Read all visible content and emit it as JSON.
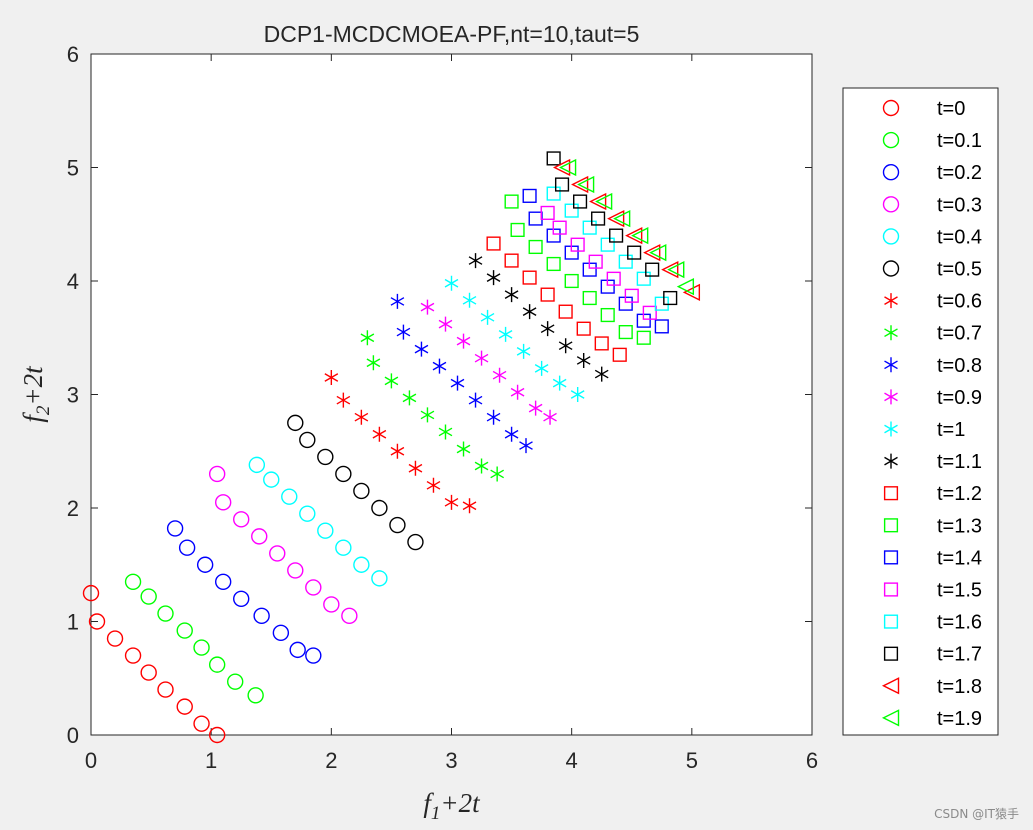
{
  "chart_data": {
    "type": "scatter",
    "title": "DCP1-MCDCMOEA-PF,nt=10,taut=5",
    "xlabel": {
      "base": "f",
      "sub": "1",
      "rest": "+2t"
    },
    "ylabel": {
      "base": "f",
      "sub": "2",
      "rest": "+2t"
    },
    "xlim": [
      0,
      6
    ],
    "ylim": [
      0,
      6
    ],
    "xticks": [
      "0",
      "1",
      "2",
      "3",
      "4",
      "5",
      "6"
    ],
    "yticks": [
      "0",
      "1",
      "2",
      "3",
      "4",
      "5",
      "6"
    ],
    "grid": false,
    "legend_position": "outside-right",
    "series": [
      {
        "name": "t=0",
        "color": "#ff0000",
        "marker": "circle",
        "x": [
          0.0,
          0.05,
          0.2,
          0.35,
          0.48,
          0.62,
          0.78,
          0.92,
          1.05
        ],
        "y": [
          1.25,
          1.0,
          0.85,
          0.7,
          0.55,
          0.4,
          0.25,
          0.1,
          0.0
        ]
      },
      {
        "name": "t=0.1",
        "color": "#00ff00",
        "marker": "circle",
        "x": [
          0.35,
          0.48,
          0.62,
          0.78,
          0.92,
          1.05,
          1.2,
          1.37
        ],
        "y": [
          1.35,
          1.22,
          1.07,
          0.92,
          0.77,
          0.62,
          0.47,
          0.35
        ]
      },
      {
        "name": "t=0.2",
        "color": "#0000ff",
        "marker": "circle",
        "x": [
          0.7,
          0.8,
          0.95,
          1.1,
          1.25,
          1.42,
          1.58,
          1.72,
          1.85
        ],
        "y": [
          1.82,
          1.65,
          1.5,
          1.35,
          1.2,
          1.05,
          0.9,
          0.75,
          0.7
        ]
      },
      {
        "name": "t=0.3",
        "color": "#ff00ff",
        "marker": "circle",
        "x": [
          1.05,
          1.1,
          1.25,
          1.4,
          1.55,
          1.7,
          1.85,
          2.0,
          2.15
        ],
        "y": [
          2.3,
          2.05,
          1.9,
          1.75,
          1.6,
          1.45,
          1.3,
          1.15,
          1.05
        ]
      },
      {
        "name": "t=0.4",
        "color": "#00ffff",
        "marker": "circle",
        "x": [
          1.38,
          1.5,
          1.65,
          1.8,
          1.95,
          2.1,
          2.25,
          2.4
        ],
        "y": [
          2.38,
          2.25,
          2.1,
          1.95,
          1.8,
          1.65,
          1.5,
          1.38
        ]
      },
      {
        "name": "t=0.5",
        "color": "#000000",
        "marker": "circle",
        "x": [
          1.7,
          1.8,
          1.95,
          2.1,
          2.25,
          2.4,
          2.55,
          2.7
        ],
        "y": [
          2.75,
          2.6,
          2.45,
          2.3,
          2.15,
          2.0,
          1.85,
          1.7
        ]
      },
      {
        "name": "t=0.6",
        "color": "#ff0000",
        "marker": "asterisk",
        "x": [
          2.0,
          2.1,
          2.25,
          2.4,
          2.55,
          2.7,
          2.85,
          3.0,
          3.15
        ],
        "y": [
          3.15,
          2.95,
          2.8,
          2.65,
          2.5,
          2.35,
          2.2,
          2.05,
          2.02
        ]
      },
      {
        "name": "t=0.7",
        "color": "#00ff00",
        "marker": "asterisk",
        "x": [
          2.3,
          2.35,
          2.5,
          2.65,
          2.8,
          2.95,
          3.1,
          3.25,
          3.38
        ],
        "y": [
          3.5,
          3.28,
          3.12,
          2.97,
          2.82,
          2.67,
          2.52,
          2.37,
          2.3
        ]
      },
      {
        "name": "t=0.8",
        "color": "#0000ff",
        "marker": "asterisk",
        "x": [
          2.55,
          2.6,
          2.75,
          2.9,
          3.05,
          3.2,
          3.35,
          3.5,
          3.62
        ],
        "y": [
          3.82,
          3.55,
          3.4,
          3.25,
          3.1,
          2.95,
          2.8,
          2.65,
          2.55
        ]
      },
      {
        "name": "t=0.9",
        "color": "#ff00ff",
        "marker": "asterisk",
        "x": [
          2.8,
          2.95,
          3.1,
          3.25,
          3.4,
          3.55,
          3.7,
          3.82
        ],
        "y": [
          3.77,
          3.62,
          3.47,
          3.32,
          3.17,
          3.02,
          2.88,
          2.8
        ]
      },
      {
        "name": "t=1",
        "color": "#00ffff",
        "marker": "asterisk",
        "x": [
          3.0,
          3.15,
          3.3,
          3.45,
          3.6,
          3.75,
          3.9,
          4.05
        ],
        "y": [
          3.98,
          3.83,
          3.68,
          3.53,
          3.38,
          3.23,
          3.1,
          3.0
        ]
      },
      {
        "name": "t=1.1",
        "color": "#000000",
        "marker": "asterisk",
        "x": [
          3.2,
          3.35,
          3.5,
          3.65,
          3.8,
          3.95,
          4.1,
          4.25
        ],
        "y": [
          4.18,
          4.03,
          3.88,
          3.73,
          3.58,
          3.43,
          3.3,
          3.18
        ]
      },
      {
        "name": "t=1.2",
        "color": "#ff0000",
        "marker": "square",
        "x": [
          3.35,
          3.5,
          3.65,
          3.8,
          3.95,
          4.1,
          4.25,
          4.4
        ],
        "y": [
          4.33,
          4.18,
          4.03,
          3.88,
          3.73,
          3.58,
          3.45,
          3.35
        ]
      },
      {
        "name": "t=1.3",
        "color": "#00ff00",
        "marker": "square",
        "x": [
          3.5,
          3.55,
          3.7,
          3.85,
          4.0,
          4.15,
          4.3,
          4.45,
          4.6
        ],
        "y": [
          4.7,
          4.45,
          4.3,
          4.15,
          4.0,
          3.85,
          3.7,
          3.55,
          3.5
        ]
      },
      {
        "name": "t=1.4",
        "color": "#0000ff",
        "marker": "square",
        "x": [
          3.65,
          3.7,
          3.85,
          4.0,
          4.15,
          4.3,
          4.45,
          4.6,
          4.75
        ],
        "y": [
          4.75,
          4.55,
          4.4,
          4.25,
          4.1,
          3.95,
          3.8,
          3.65,
          3.6
        ]
      },
      {
        "name": "t=1.5",
        "color": "#ff00ff",
        "marker": "square",
        "x": [
          3.8,
          3.9,
          4.05,
          4.2,
          4.35,
          4.5,
          4.65
        ],
        "y": [
          4.6,
          4.47,
          4.32,
          4.17,
          4.02,
          3.87,
          3.72
        ]
      },
      {
        "name": "t=1.6",
        "color": "#00ffff",
        "marker": "square",
        "x": [
          3.85,
          4.0,
          4.15,
          4.3,
          4.45,
          4.6,
          4.75
        ],
        "y": [
          4.77,
          4.62,
          4.47,
          4.32,
          4.17,
          4.02,
          3.8
        ]
      },
      {
        "name": "t=1.7",
        "color": "#000000",
        "marker": "square",
        "x": [
          3.85,
          3.92,
          4.07,
          4.22,
          4.37,
          4.52,
          4.67,
          4.82
        ],
        "y": [
          5.08,
          4.85,
          4.7,
          4.55,
          4.4,
          4.25,
          4.1,
          3.85
        ]
      },
      {
        "name": "t=1.8",
        "color": "#ff0000",
        "marker": "triangle-left",
        "x": [
          3.92,
          4.07,
          4.22,
          4.37,
          4.52,
          4.67,
          4.82,
          5.0
        ],
        "y": [
          5.0,
          4.85,
          4.7,
          4.55,
          4.4,
          4.25,
          4.1,
          3.9
        ]
      },
      {
        "name": "t=1.9",
        "color": "#00ff00",
        "marker": "triangle-left",
        "x": [
          3.97,
          4.12,
          4.27,
          4.42,
          4.57,
          4.72,
          4.87,
          4.95
        ],
        "y": [
          5.0,
          4.85,
          4.7,
          4.55,
          4.4,
          4.25,
          4.1,
          3.95
        ]
      }
    ]
  },
  "watermark": "CSDN @IT猿手"
}
